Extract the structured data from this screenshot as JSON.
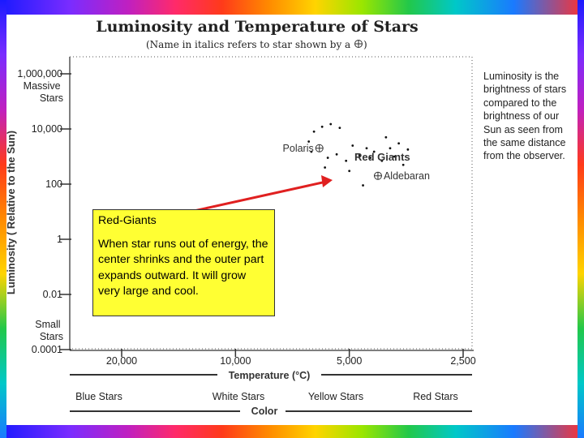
{
  "slide": {
    "title": "Luminosity and Temperature of Stars",
    "subtitle": "(Name in italics refers to star shown by a",
    "subtitle_end": ")",
    "side_note": "Luminosity is the brightness of stars compared to the brightness of our Sun as seen from the same distance from the observer.",
    "callout": {
      "heading": "Red-Giants",
      "body": "When star runs out of energy, the center shrinks and the outer part expands outward.  It will grow very large and cool."
    },
    "colors": {
      "callout_fill": "#ffff33",
      "arrow": "#e02020",
      "ink": "#333333"
    },
    "icons": [
      "star-marker-icon"
    ]
  },
  "chart_data": {
    "type": "scatter",
    "title": "Luminosity and Temperature of Stars",
    "ylabel": "Luminosity ( Relative to the Sun)",
    "xlabel": "Temperature (°C)",
    "y_scale": "log",
    "x_scale": "reciprocal-style, decreasing to the right",
    "y_ticks": [
      {
        "value": 1000000,
        "label": "1,000,000"
      },
      {
        "value": 10000,
        "label": "10,000"
      },
      {
        "value": 100,
        "label": "100"
      },
      {
        "value": 1,
        "label": "1"
      },
      {
        "value": 0.01,
        "label": "0.01"
      },
      {
        "value": 0.0001,
        "label": "0.0001"
      }
    ],
    "y_end_labels": {
      "top": "Massive Stars",
      "bottom": "Small Stars"
    },
    "x_ticks": [
      {
        "value": 20000,
        "label": "20,000"
      },
      {
        "value": 10000,
        "label": "10,000"
      },
      {
        "value": 5000,
        "label": "5,000"
      },
      {
        "value": 2500,
        "label": "2,500"
      }
    ],
    "color_axis": {
      "label": "Color",
      "categories": [
        "Blue Stars",
        "White Stars",
        "Yellow Stars",
        "Red Stars"
      ]
    },
    "group_label": "Red Giants",
    "named_stars": [
      {
        "name": "Polaris",
        "temperature": 6000,
        "luminosity": 2000
      },
      {
        "name": "Aldebaran",
        "temperature": 4200,
        "luminosity": 200
      }
    ],
    "series": [
      {
        "points": [
          {
            "temperature": 6200,
            "luminosity": 8000
          },
          {
            "temperature": 5900,
            "luminosity": 12000
          },
          {
            "temperature": 5600,
            "luminosity": 15000
          },
          {
            "temperature": 5300,
            "luminosity": 11000
          },
          {
            "temperature": 6400,
            "luminosity": 3500
          },
          {
            "temperature": 6300,
            "luminosity": 1500
          },
          {
            "temperature": 5700,
            "luminosity": 900
          },
          {
            "temperature": 5400,
            "luminosity": 1200
          },
          {
            "temperature": 5100,
            "luminosity": 700
          },
          {
            "temperature": 4900,
            "luminosity": 2500
          },
          {
            "temperature": 4700,
            "luminosity": 1100
          },
          {
            "temperature": 4500,
            "luminosity": 2000
          },
          {
            "temperature": 4400,
            "luminosity": 900
          },
          {
            "temperature": 4300,
            "luminosity": 1500
          },
          {
            "temperature": 4100,
            "luminosity": 700
          },
          {
            "temperature": 4000,
            "luminosity": 5000
          },
          {
            "temperature": 3900,
            "luminosity": 2000
          },
          {
            "temperature": 3800,
            "luminosity": 1000
          },
          {
            "temperature": 3700,
            "luminosity": 3000
          },
          {
            "temperature": 3600,
            "luminosity": 500
          },
          {
            "temperature": 4600,
            "luminosity": 90
          },
          {
            "temperature": 5000,
            "luminosity": 300
          },
          {
            "temperature": 3500,
            "luminosity": 1800
          },
          {
            "temperature": 5800,
            "luminosity": 400
          }
        ]
      }
    ]
  }
}
